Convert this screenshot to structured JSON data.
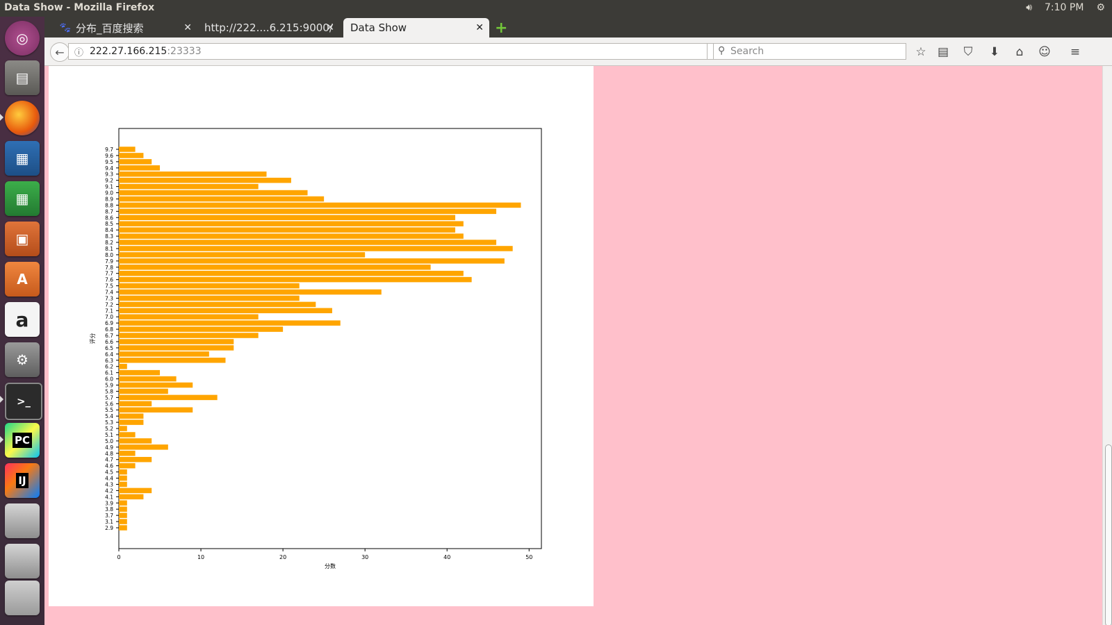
{
  "window": {
    "title": "Data Show - Mozilla Firefox",
    "clock": "7:10 PM"
  },
  "tabs": [
    {
      "label": "分布_百度搜索",
      "active": false
    },
    {
      "label": "http://222....6.215:9000/",
      "active": false
    },
    {
      "label": "Data Show",
      "active": true
    }
  ],
  "navbar": {
    "url_host": "222.27.166.215",
    "url_port": ":23333",
    "search_placeholder": "Search"
  },
  "launcher": {
    "items": [
      "ubuntu-dash",
      "files",
      "firefox",
      "writer",
      "calc",
      "impress",
      "software-center",
      "amazon",
      "system-settings",
      "terminal",
      "pycharm",
      "intellij",
      "disk-1",
      "disk-2",
      "trash"
    ]
  },
  "chart_data": {
    "type": "bar",
    "orientation": "horizontal",
    "bar_color": "#ffa500",
    "categories": [
      "2.9",
      "3.1",
      "3.7",
      "3.8",
      "3.9",
      "4.1",
      "4.2",
      "4.3",
      "4.4",
      "4.5",
      "4.6",
      "4.7",
      "4.8",
      "4.9",
      "5.0",
      "5.1",
      "5.2",
      "5.3",
      "5.4",
      "5.5",
      "5.6",
      "5.7",
      "5.8",
      "5.9",
      "6.0",
      "6.1",
      "6.2",
      "6.3",
      "6.4",
      "6.5",
      "6.6",
      "6.7",
      "6.8",
      "6.9",
      "7.0",
      "7.1",
      "7.2",
      "7.3",
      "7.4",
      "7.5",
      "7.6",
      "7.7",
      "7.8",
      "7.9",
      "8.0",
      "8.1",
      "8.2",
      "8.3",
      "8.4",
      "8.5",
      "8.6",
      "8.7",
      "8.8",
      "8.9",
      "9.0",
      "9.1",
      "9.2",
      "9.3",
      "9.4",
      "9.5",
      "9.6",
      "9.7"
    ],
    "values": [
      1,
      1,
      1,
      1,
      1,
      3,
      4,
      1,
      1,
      1,
      2,
      4,
      2,
      6,
      4,
      2,
      1,
      3,
      3,
      9,
      4,
      12,
      6,
      9,
      7,
      5,
      1,
      13,
      11,
      14,
      14,
      17,
      20,
      27,
      17,
      26,
      24,
      22,
      32,
      22,
      43,
      42,
      38,
      47,
      30,
      48,
      46,
      42,
      41,
      42,
      41,
      46,
      49,
      25,
      23,
      17,
      21,
      18,
      5,
      4,
      3,
      2
    ],
    "xlabel": "分数",
    "ylabel": "评分",
    "xlim": [
      0,
      51.5
    ],
    "xticks": [
      "0",
      "10",
      "20",
      "30",
      "40",
      "50"
    ],
    "grid": false
  }
}
